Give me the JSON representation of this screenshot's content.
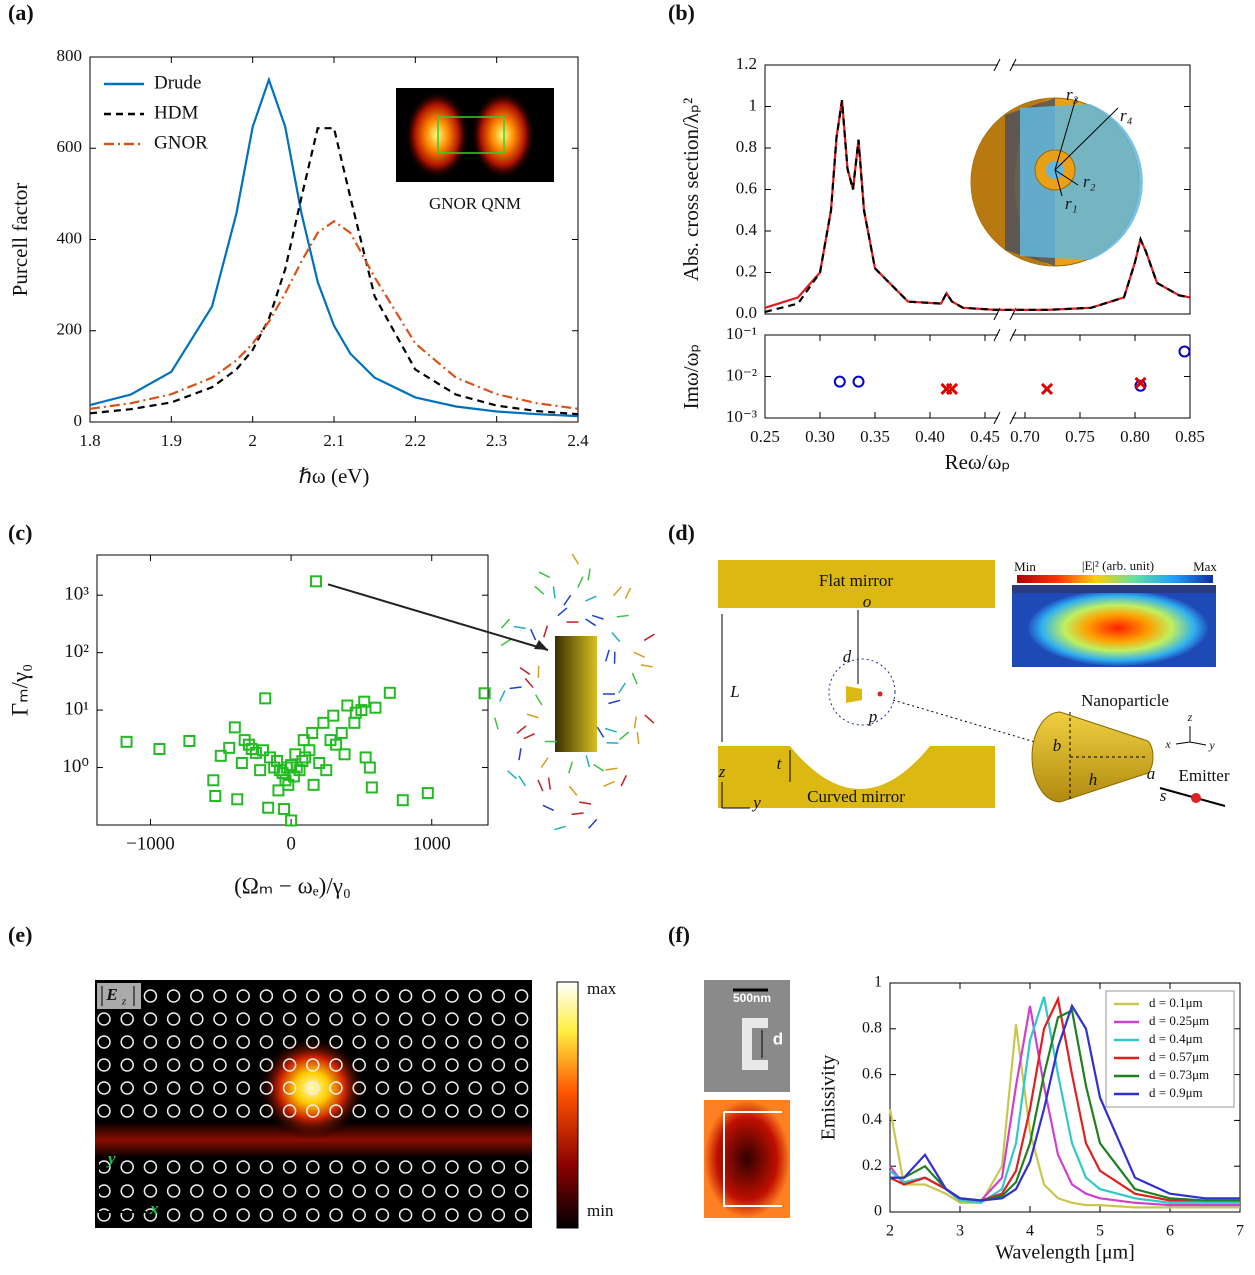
{
  "chart_data": [
    {
      "type": "line",
      "xlabel": "ℏω (eV)",
      "ylabel": "Purcell factor",
      "xlim": [
        1.8,
        2.4
      ],
      "xticks": [
        1.8,
        1.9,
        2,
        2.1,
        2.2,
        2.3,
        2.4
      ],
      "ylim": [
        0,
        800
      ],
      "yticks": [
        0,
        200,
        400,
        600,
        800
      ],
      "legend": "upper left",
      "x": [
        1.8,
        1.85,
        1.9,
        1.95,
        1.98,
        2.0,
        2.02,
        2.04,
        2.06,
        2.08,
        2.1,
        2.12,
        2.15,
        2.2,
        2.25,
        2.3,
        2.35,
        2.4
      ],
      "series": [
        {
          "name": "Drude",
          "color": "#0072bd",
          "dash": "solid",
          "values": [
            37,
            60,
            110,
            253,
            457,
            647,
            750,
            647,
            457,
            307,
            211,
            150,
            97,
            54,
            34,
            23,
            17,
            13
          ]
        },
        {
          "name": "HDM",
          "color": "#000000",
          "dash": "dashed",
          "values": [
            19,
            28,
            43,
            76,
            115,
            158,
            226,
            335,
            493,
            644,
            644,
            493,
            275,
            115,
            60,
            36,
            24,
            17
          ]
        },
        {
          "name": "GNOR",
          "color": "#d95319",
          "dash": "dashdot",
          "values": [
            29,
            41,
            61,
            97,
            135,
            172,
            220,
            282,
            352,
            415,
            440,
            415,
            317,
            172,
            97,
            61,
            41,
            29
          ]
        }
      ]
    },
    {
      "type": "line",
      "ylabel": "Abs. cross section/λₚ²",
      "xlim": [
        [
          0.25,
          0.46
        ],
        [
          0.69,
          0.85
        ]
      ],
      "ylim": [
        0,
        1.2
      ],
      "yticks": [
        {
          "value": 0,
          "label": "0.0"
        },
        0.2,
        0.4,
        0.6,
        0.8,
        1,
        1.2
      ],
      "x": [
        0.25,
        0.28,
        0.3,
        0.31,
        0.315,
        0.32,
        0.325,
        0.33,
        0.335,
        0.34,
        0.35,
        0.38,
        0.41,
        0.415,
        0.42,
        0.43,
        0.46,
        0.69,
        0.72,
        0.76,
        0.79,
        0.8,
        0.805,
        0.81,
        0.82,
        0.84,
        0.85
      ],
      "series": [
        {
          "color": "#e41a1c",
          "dash": "solid",
          "values": [
            0.03,
            0.08,
            0.2,
            0.5,
            0.85,
            1.03,
            0.7,
            0.6,
            0.84,
            0.5,
            0.22,
            0.06,
            0.05,
            0.1,
            0.06,
            0.03,
            0.02,
            0.02,
            0.02,
            0.03,
            0.08,
            0.25,
            0.36,
            0.3,
            0.15,
            0.09,
            0.08
          ]
        },
        {
          "color": "#000000",
          "dash": "dashed",
          "values": [
            0.01,
            0.05,
            0.2,
            0.5,
            0.85,
            1.03,
            0.7,
            0.6,
            0.84,
            0.5,
            0.22,
            0.06,
            0.05,
            0.1,
            0.06,
            0.03,
            0.02,
            0.02,
            0.02,
            0.03,
            0.08,
            0.25,
            0.36,
            0.3,
            0.15,
            0.09,
            0.08
          ]
        }
      ]
    },
    {
      "type": "scatter",
      "xlabel": "Reω/ωₚ",
      "ylabel": "Imω/ωₚ",
      "xlim": [
        [
          0.25,
          0.46
        ],
        [
          0.69,
          0.85
        ]
      ],
      "xticks": [
        0.25,
        {
          "value": 0.3,
          "label": "0.30"
        },
        0.35,
        {
          "value": 0.4,
          "label": "0.40"
        },
        0.45,
        {
          "value": 0.7,
          "label": "0.70"
        },
        0.75,
        {
          "value": 0.8,
          "label": "0.80"
        },
        0.85
      ],
      "ylog": true,
      "ylim": [
        0.001,
        0.1
      ],
      "yticks": [
        {
          "value": 0.001,
          "label": "10⁻³"
        },
        {
          "value": 0.01,
          "label": "10⁻²"
        },
        {
          "value": 0.1,
          "label": "10⁻¹"
        }
      ],
      "series": [
        {
          "marker": "circle",
          "color": "#0000cc",
          "x": [
            0.318,
            0.335,
            0.805,
            0.845
          ],
          "values": [
            0.0075,
            0.0075,
            0.006,
            0.04
          ]
        },
        {
          "marker": "cross",
          "color": "#dd0000",
          "x": [
            0.415,
            0.42,
            0.72,
            0.805
          ],
          "values": [
            0.005,
            0.005,
            0.005,
            0.007
          ]
        }
      ]
    },
    {
      "type": "scatter",
      "xlabel": "(Ωₘ − ωₑ)/γ₀",
      "ylabel": "Γₘ/γ₀",
      "xlim": [
        -1380,
        1400
      ],
      "xticks": [
        {
          "value": -1000,
          "label": "−1000"
        },
        0,
        1000
      ],
      "ylog": true,
      "ylim": [
        0.1,
        5000
      ],
      "yticks": [
        {
          "value": 1,
          "label": "10⁰"
        },
        {
          "value": 10,
          "label": "10¹"
        },
        {
          "value": 100,
          "label": "10²"
        },
        {
          "value": 1000,
          "label": "10³"
        }
      ],
      "series": [
        {
          "marker": "square",
          "color": "#22bb22",
          "x": [
            177,
            1376,
            -1170,
            -936,
            -723,
            702,
            -184,
            0,
            794,
            972,
            574,
            -553,
            -539,
            -383,
            -163,
            -50,
            -440,
            -400,
            -330,
            -300,
            -250,
            -200,
            -150,
            -120,
            -100,
            -80,
            -60,
            -40,
            -20,
            0,
            20,
            40,
            60,
            80,
            100,
            130,
            160,
            200,
            250,
            280,
            320,
            360,
            400,
            450,
            500,
            530,
            560,
            600,
            -500,
            -350,
            -280,
            -220,
            -90,
            -30,
            30,
            90,
            150,
            230,
            300,
            380,
            460,
            520
          ],
          "values": [
            1740,
            19.6,
            2.8,
            2.1,
            2.9,
            20,
            16,
            0.12,
            0.27,
            0.36,
            0.45,
            0.6,
            0.32,
            0.28,
            0.2,
            0.19,
            2.2,
            5,
            3,
            2.5,
            1.8,
            2,
            1.5,
            1,
            1.3,
            0.9,
            0.8,
            0.6,
            0.5,
            1.1,
            0.7,
            1,
            0.9,
            1.3,
            1.5,
            2,
            0.5,
            1.2,
            0.9,
            3,
            2.5,
            4,
            12,
            6,
            10,
            1.5,
            1,
            11,
            1.6,
            1.2,
            2.1,
            0.9,
            0.4,
            1,
            1.7,
            3,
            4,
            6,
            8,
            1.7,
            9,
            14
          ]
        }
      ]
    },
    {
      "type": "line",
      "xlabel": "Wavelength [μm]",
      "ylabel": "Emissivity",
      "xlim": [
        2,
        7
      ],
      "xticks": [
        2,
        3,
        4,
        5,
        6,
        7
      ],
      "ylim": [
        0,
        1
      ],
      "yticks": [
        0,
        0.2,
        0.4,
        0.6,
        0.8,
        1
      ],
      "legend": "upper right",
      "x": [
        2,
        2.2,
        2.5,
        2.8,
        3,
        3.3,
        3.6,
        3.8,
        4,
        4.2,
        4.4,
        4.6,
        4.8,
        5,
        5.5,
        6,
        6.5,
        7
      ],
      "series": [
        {
          "name": "d = 0.1μm",
          "color": "#c8c850",
          "dash": "solid",
          "values": [
            0.45,
            0.12,
            0.12,
            0.08,
            0.04,
            0.04,
            0.2,
            0.82,
            0.35,
            0.12,
            0.06,
            0.04,
            0.03,
            0.03,
            0.02,
            0.02,
            0.02,
            0.02
          ]
        },
        {
          "name": "d = 0.25μm",
          "color": "#d040d0",
          "dash": "solid",
          "values": [
            0.2,
            0.12,
            0.15,
            0.1,
            0.05,
            0.05,
            0.15,
            0.55,
            0.9,
            0.55,
            0.25,
            0.12,
            0.08,
            0.06,
            0.04,
            0.03,
            0.03,
            0.03
          ]
        },
        {
          "name": "d = 0.4μm",
          "color": "#30c8c8",
          "dash": "solid",
          "values": [
            0.18,
            0.13,
            0.15,
            0.1,
            0.05,
            0.04,
            0.1,
            0.3,
            0.75,
            0.94,
            0.6,
            0.3,
            0.15,
            0.1,
            0.06,
            0.04,
            0.04,
            0.04
          ]
        },
        {
          "name": "d = 0.57μm",
          "color": "#e02020",
          "dash": "solid",
          "values": [
            0.15,
            0.12,
            0.15,
            0.1,
            0.06,
            0.05,
            0.08,
            0.18,
            0.45,
            0.8,
            0.93,
            0.6,
            0.3,
            0.18,
            0.08,
            0.05,
            0.05,
            0.05
          ]
        },
        {
          "name": "d = 0.73μm",
          "color": "#208020",
          "dash": "solid",
          "values": [
            0.15,
            0.15,
            0.2,
            0.1,
            0.06,
            0.05,
            0.07,
            0.13,
            0.3,
            0.6,
            0.85,
            0.88,
            0.55,
            0.3,
            0.1,
            0.06,
            0.05,
            0.05
          ]
        },
        {
          "name": "d = 0.9μm",
          "color": "#3030d0",
          "dash": "solid",
          "values": [
            0.15,
            0.15,
            0.25,
            0.1,
            0.06,
            0.05,
            0.06,
            0.1,
            0.22,
            0.45,
            0.72,
            0.9,
            0.8,
            0.5,
            0.15,
            0.08,
            0.06,
            0.06
          ]
        }
      ]
    }
  ],
  "figure": {
    "panel_labels": [
      "(a)",
      "(b)",
      "(c)",
      "(d)",
      "(e)",
      "(f)"
    ],
    "inset_a": "GNOR QNM",
    "inset_b": [
      "r₁",
      "r₂",
      "r₃",
      "r₄"
    ],
    "d": {
      "flat_mirror": "Flat mirror",
      "curved_mirror": "Curved mirror",
      "o": "o",
      "d": "d",
      "L": "L",
      "p": "p",
      "t": "t",
      "z": "z",
      "y": "y",
      "nanoparticle": "Nanoparticle",
      "b": "b",
      "h": "h",
      "a": "a",
      "s": "s",
      "emitter": "Emitter",
      "cb_min": "Min",
      "cb_title": "|E|² (arb. unit)",
      "cb_max": "Max",
      "ax_z": "z",
      "ax_x": "x",
      "ax_y": "y"
    },
    "e": {
      "field": "E",
      "field_sub": "z",
      "max": "max",
      "min": "min",
      "ax_y": "y",
      "ax_x": "x"
    },
    "f": {
      "scale": "500nm",
      "d": "d"
    }
  }
}
